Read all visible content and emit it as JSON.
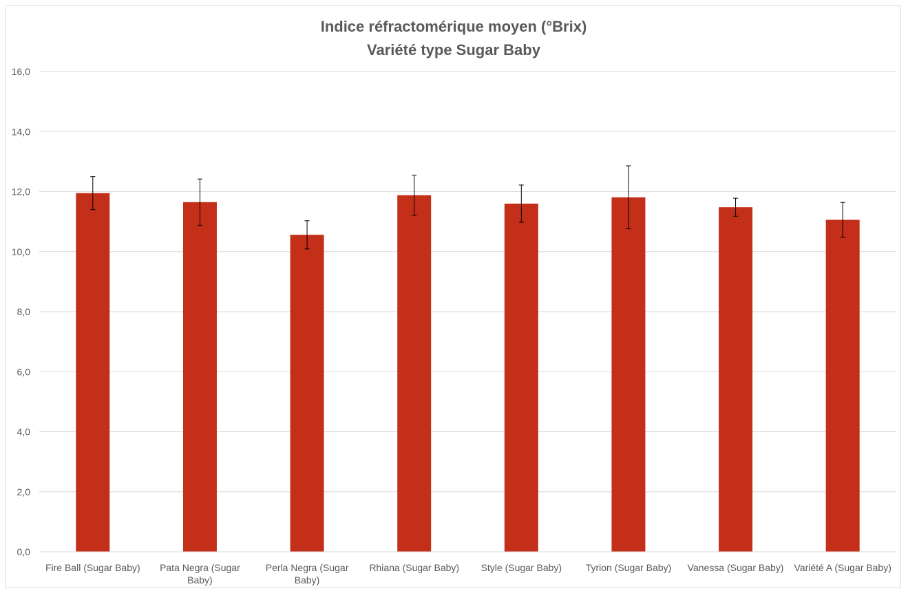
{
  "chart_data": {
    "type": "bar",
    "title": "Indice réfractomérique moyen (°Brix)",
    "subtitle": "Variété type Sugar Baby",
    "xlabel": "",
    "ylabel": "",
    "ylim": [
      0,
      16
    ],
    "y_ticks": [
      "0,0",
      "2,0",
      "4,0",
      "6,0",
      "8,0",
      "10,0",
      "12,0",
      "14,0",
      "16,0"
    ],
    "grid": true,
    "bar_color": "#c42f1a",
    "categories": [
      [
        "Fire Ball (Sugar Baby)"
      ],
      [
        "Pata Negra (Sugar",
        "Baby)"
      ],
      [
        "Perla Negra (Sugar",
        "Baby)"
      ],
      [
        "Rhiana (Sugar Baby)"
      ],
      [
        "Style (Sugar Baby)"
      ],
      [
        "Tyrion (Sugar Baby)"
      ],
      [
        "Vanessa (Sugar Baby)"
      ],
      [
        "Variété A (Sugar Baby)"
      ]
    ],
    "values": [
      11.95,
      11.65,
      10.56,
      11.88,
      11.6,
      11.81,
      11.48,
      11.06
    ],
    "errors": [
      0.55,
      0.77,
      0.47,
      0.67,
      0.62,
      1.05,
      0.3,
      0.58
    ]
  }
}
